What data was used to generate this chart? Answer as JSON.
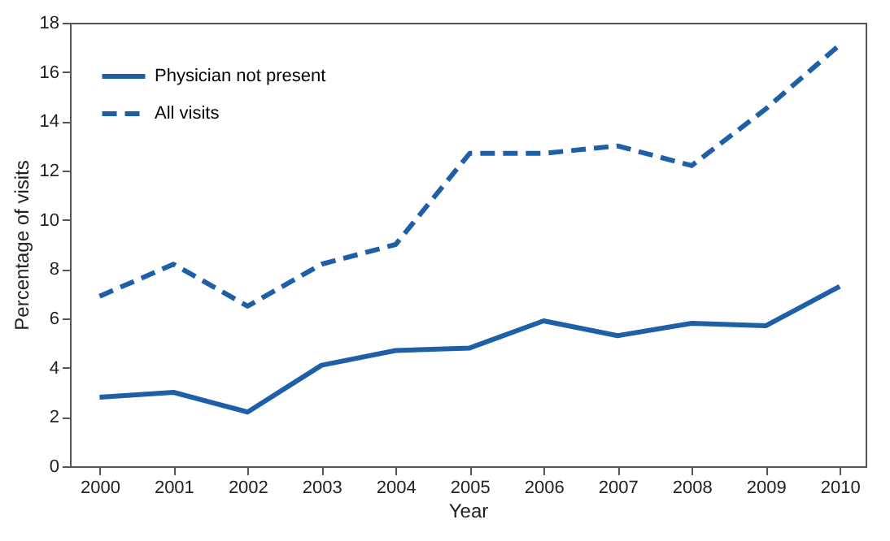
{
  "chart_data": {
    "type": "line",
    "xlabel": "Year",
    "ylabel": "Percentage of visits",
    "x": [
      2000,
      2001,
      2002,
      2003,
      2004,
      2005,
      2006,
      2007,
      2008,
      2009,
      2010
    ],
    "series": [
      {
        "name": "Physician not present",
        "color": "#1f5fa8",
        "line_style": "solid",
        "values": [
          2.8,
          3.0,
          2.2,
          4.1,
          4.7,
          4.8,
          5.9,
          5.3,
          5.8,
          5.7,
          7.3
        ]
      },
      {
        "name": "All visits",
        "color": "#1f5fa8",
        "line_style": "dashed",
        "values": [
          6.9,
          8.2,
          6.5,
          8.2,
          9.0,
          12.7,
          12.7,
          13.0,
          12.2,
          14.5,
          17.1
        ]
      }
    ],
    "xlim": [
      1999.6,
      2010.35
    ],
    "xticks": [
      2000,
      2001,
      2002,
      2003,
      2004,
      2005,
      2006,
      2007,
      2008,
      2009,
      2010
    ],
    "ylim": [
      0,
      18
    ],
    "yticks": [
      0,
      2,
      4,
      6,
      8,
      10,
      12,
      14,
      16,
      18
    ],
    "grid": false,
    "legend": "top left",
    "marker": "none"
  }
}
